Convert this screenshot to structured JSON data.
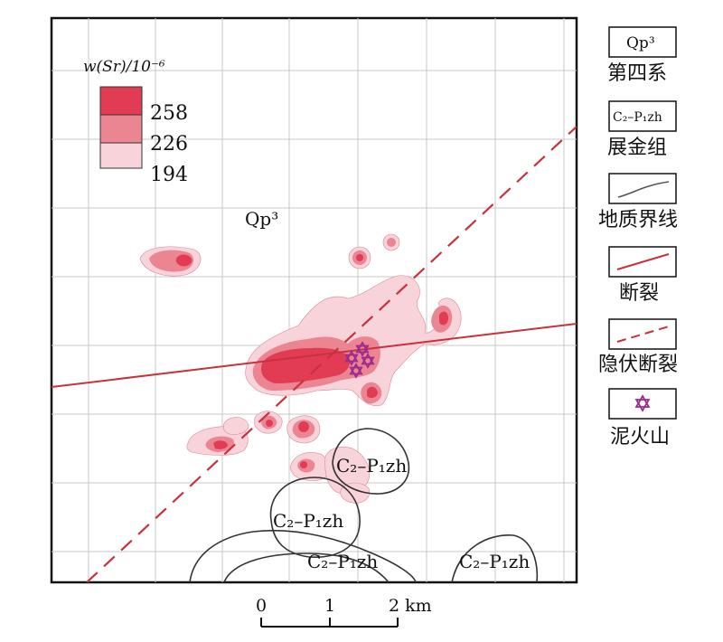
{
  "colors": {
    "strontium_high": "#e23c55",
    "strontium_mid": "#ec8592",
    "strontium_low": "#f8d3da",
    "fault": "#c8323c",
    "geologic_boundary": "#333333",
    "mud_volcano": "#9b2a8f",
    "grid": "#c9c9c9"
  },
  "concentration_legend": {
    "title": "w(Sr)/10⁻⁶",
    "levels": [
      "258",
      "226",
      "194"
    ]
  },
  "map_labels": {
    "quaternary": "Qp³",
    "formation_a": "C₂–P₁zh",
    "formation_b": "C₂–P₁zh",
    "formation_c": "C₂–P₁zh",
    "formation_d": "C₂–P₁zh"
  },
  "scale_bar": {
    "ticks": [
      "0",
      "1",
      "2 km"
    ]
  },
  "legend": [
    {
      "key": "quaternary",
      "symbol": "Qp³",
      "label": "第四系",
      "icon": "text-box-icon"
    },
    {
      "key": "zhanjin",
      "symbol": "C₂–P₁zh",
      "label": "展金组",
      "icon": "text-box-icon"
    },
    {
      "key": "boundary",
      "symbol": "",
      "label": "地质界线",
      "icon": "boundary-line-icon"
    },
    {
      "key": "fault",
      "symbol": "",
      "label": "断裂",
      "icon": "fault-line-icon"
    },
    {
      "key": "hidden-fault",
      "symbol": "",
      "label": "隐伏断裂",
      "icon": "dashed-fault-icon"
    },
    {
      "key": "mud-volcano",
      "symbol": "",
      "label": "泥火山",
      "icon": "star-of-david-icon"
    }
  ]
}
